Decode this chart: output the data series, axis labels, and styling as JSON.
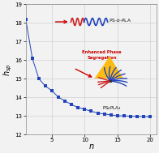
{
  "title": "",
  "xlabel": "n",
  "ylabel": "h_sp",
  "xlim": [
    1,
    21
  ],
  "ylim": [
    12,
    19
  ],
  "xticks": [
    5,
    10,
    15,
    20
  ],
  "yticks": [
    12,
    13,
    14,
    15,
    16,
    17,
    18,
    19
  ],
  "x_data": [
    1,
    2,
    3,
    4,
    5,
    6,
    7,
    8,
    9,
    10,
    11,
    12,
    13,
    14,
    15,
    16,
    17,
    18,
    19,
    20
  ],
  "y_data": [
    18.2,
    16.1,
    15.0,
    14.6,
    14.35,
    14.0,
    13.8,
    13.6,
    13.45,
    13.35,
    13.25,
    13.15,
    13.1,
    13.05,
    13.0,
    13.0,
    12.98,
    12.97,
    12.96,
    12.95
  ],
  "line_color": "#2244bb",
  "marker_color": "#2244bb",
  "marker_style": "s",
  "marker_size": 2.5,
  "grid_color": "#c8c8c8",
  "bg_color": "#f2f2f2",
  "arrow_color": "#cc0000",
  "star_blue": "#2244bb",
  "star_red": "#cc2222",
  "yellow_color": "#FFB800",
  "label_enhanced": "Enhanced Phase\nSegregation",
  "text_color_enhanced": "#cc0000",
  "text_color_labels": "#111111",
  "tick_fontsize": 5,
  "label_fontsize": 7
}
